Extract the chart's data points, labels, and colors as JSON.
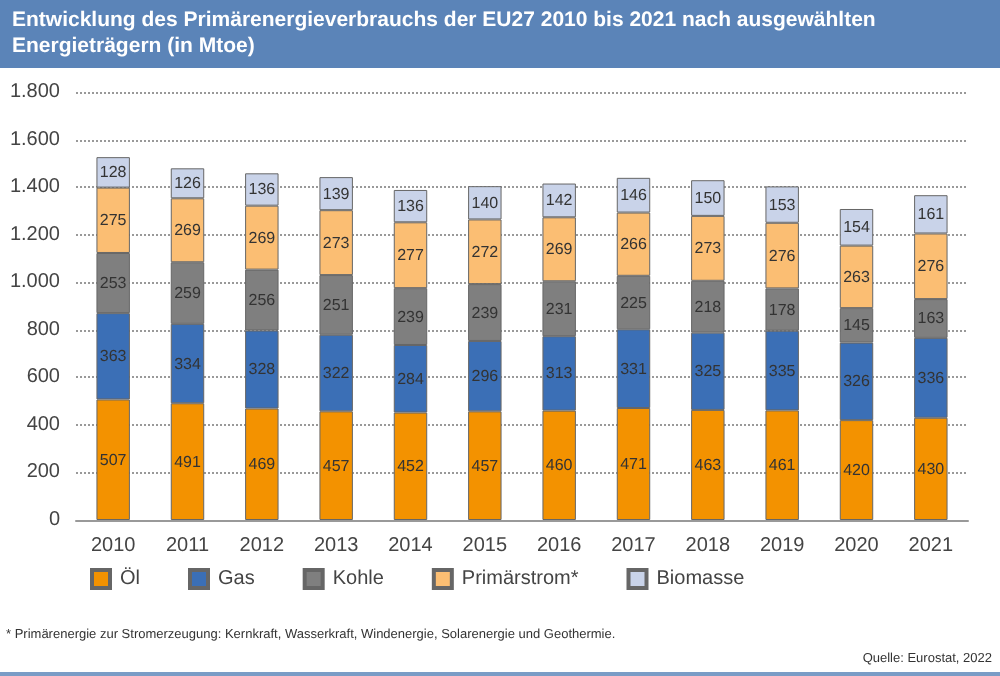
{
  "chart_data": {
    "type": "bar",
    "title": "Entwicklung des Primärenergieverbrauchs der EU27 2010 bis 2021 nach ausgewählten Energieträgern (in Mtoe)",
    "categories": [
      "2010",
      "2011",
      "2012",
      "2013",
      "2014",
      "2015",
      "2016",
      "2017",
      "2018",
      "2019",
      "2020",
      "2021"
    ],
    "stacked": true,
    "data_labels": true,
    "grid": "y",
    "legend": "bottom",
    "ylim": [
      0,
      1800
    ],
    "yticks": [
      0,
      200,
      400,
      600,
      800,
      {
        "value": 1000,
        "label": "1.000"
      },
      {
        "value": 1200,
        "label": "1.200"
      },
      {
        "value": 1400,
        "label": "1.400"
      },
      {
        "value": 1600,
        "label": "1.600"
      },
      {
        "value": 1800,
        "label": "1.800"
      }
    ],
    "series": [
      {
        "name": "Öl",
        "color": "#f39200",
        "values": [
          507,
          491,
          469,
          457,
          452,
          457,
          460,
          471,
          463,
          461,
          420,
          430
        ]
      },
      {
        "name": "Gas",
        "color": "#3b6fb6",
        "values": [
          363,
          334,
          328,
          322,
          284,
          296,
          313,
          331,
          325,
          335,
          326,
          336
        ]
      },
      {
        "name": "Kohle",
        "color": "#7f7f7f",
        "values": [
          253,
          259,
          256,
          251,
          239,
          239,
          231,
          225,
          218,
          178,
          145,
          163
        ]
      },
      {
        "name": "Primärstrom*",
        "color": "#fbbe73",
        "values": [
          275,
          269,
          269,
          273,
          277,
          272,
          269,
          266,
          273,
          276,
          263,
          276
        ]
      },
      {
        "name": "Biomasse",
        "color": "#c9d3e9",
        "values": [
          128,
          126,
          136,
          139,
          136,
          140,
          142,
          146,
          150,
          153,
          154,
          161
        ]
      }
    ],
    "annotations": [
      "* Primärenergie zur Stromerzeugung: Kernkraft, Wasserkraft, Windenergie, Solarenergie und Geothermie.",
      "Quelle: Eurostat, 2022"
    ]
  }
}
